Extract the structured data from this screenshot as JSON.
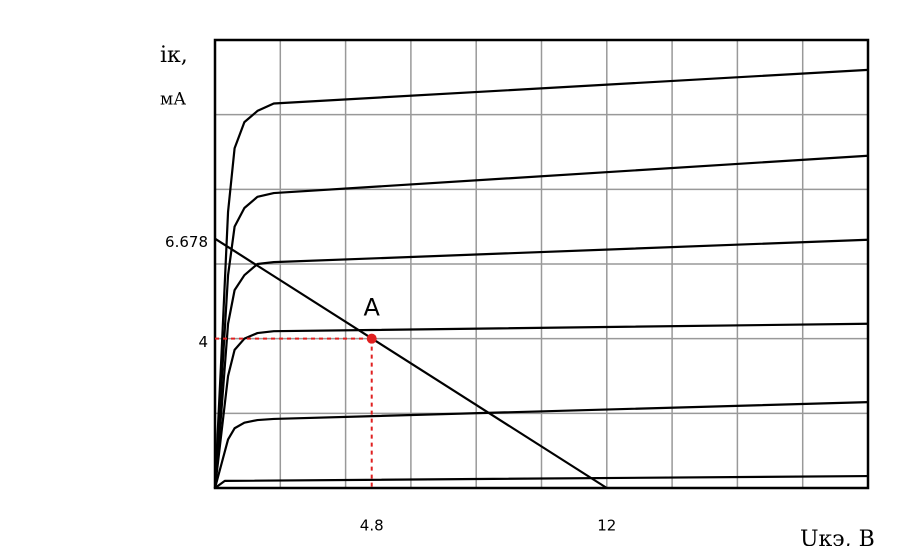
{
  "chart_data": {
    "type": "line",
    "y_label_line1": "iк,",
    "y_label_line2": "мА",
    "x_label": "Uкэ, В",
    "xlim": [
      0,
      20
    ],
    "ylim": [
      0,
      12
    ],
    "xticks": [
      4.8,
      12
    ],
    "yticks": [
      4,
      6.678
    ],
    "grid_x": [
      2,
      4,
      6,
      8,
      10,
      12,
      14,
      16,
      18
    ],
    "grid_y": [
      2,
      4,
      6,
      8,
      10
    ],
    "series": [
      {
        "color": "#000000",
        "x": [
          0,
          0.2,
          0.4,
          0.6,
          0.9,
          1.3,
          1.8,
          20
        ],
        "values": [
          0,
          3.6,
          7.4,
          9.1,
          9.8,
          10.1,
          10.3,
          11.2
        ]
      },
      {
        "color": "#000000",
        "x": [
          0,
          0.2,
          0.4,
          0.6,
          0.9,
          1.3,
          1.8,
          20
        ],
        "values": [
          0,
          2.8,
          5.7,
          7.0,
          7.5,
          7.8,
          7.9,
          8.9
        ]
      },
      {
        "color": "#000000",
        "x": [
          0,
          0.2,
          0.4,
          0.6,
          0.9,
          1.3,
          1.8,
          20
        ],
        "values": [
          0,
          2.1,
          4.4,
          5.3,
          5.7,
          6.0,
          6.05,
          6.65
        ]
      },
      {
        "color": "#000000",
        "x": [
          0,
          0.2,
          0.4,
          0.6,
          0.9,
          1.3,
          1.8,
          20
        ],
        "values": [
          0,
          1.5,
          3.0,
          3.7,
          4.0,
          4.15,
          4.2,
          4.4
        ]
      },
      {
        "color": "#000000",
        "x": [
          0,
          0.2,
          0.4,
          0.6,
          0.9,
          1.3,
          1.8,
          20
        ],
        "values": [
          0,
          0.65,
          1.3,
          1.6,
          1.75,
          1.82,
          1.85,
          2.3
        ]
      },
      {
        "color": "#000000",
        "x": [
          0,
          0.3,
          20
        ],
        "values": [
          0,
          0.19,
          0.32
        ]
      },
      {
        "color": "#000000",
        "x": [
          0,
          12
        ],
        "values": [
          6.678,
          0
        ]
      }
    ],
    "point": {
      "label": "A",
      "x": 4.8,
      "y": 4,
      "color": "#e02020"
    }
  }
}
